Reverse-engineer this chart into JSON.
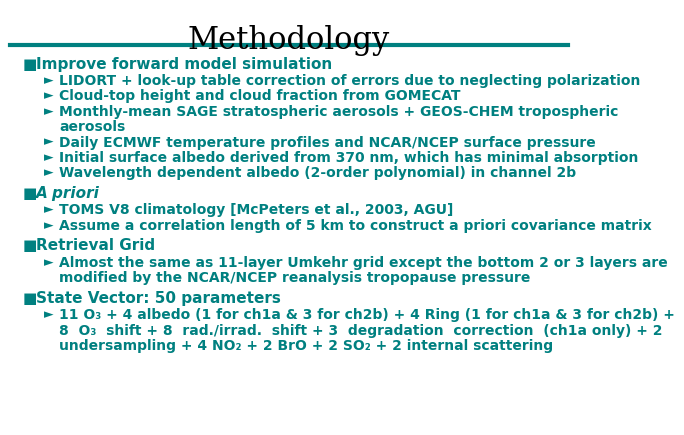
{
  "title": "Methodology",
  "title_font": "serif",
  "title_fontsize": 22,
  "teal_color": "#008080",
  "black_color": "#000000",
  "bg_color": "#ffffff",
  "bullet_size": 11,
  "sub_bullet_size": 10,
  "sections": [
    {
      "bullet": "Improve forward model simulation",
      "bullet_italic": false,
      "sub_bullets": [
        [
          "LIDORT + look-up table correction of errors due to neglecting polarization"
        ],
        [
          "Cloud-top height and cloud fraction from GOMECAT"
        ],
        [
          "Monthly-mean SAGE stratospheric aerosols + GEOS-CHEM tropospheric",
          "aerosols"
        ],
        [
          "Daily ECMWF temperature profiles and NCAR/NCEP surface pressure"
        ],
        [
          "Initial surface albedo derived from 370 nm, which has minimal absorption"
        ],
        [
          "Wavelength dependent albedo (2-order polynomial) in channel 2b"
        ]
      ]
    },
    {
      "bullet": "A priori",
      "bullet_italic": true,
      "sub_bullets": [
        [
          "TOMS V8 climatology [McPeters et al., 2003, AGU]"
        ],
        [
          "Assume a correlation length of 5 km to construct a priori covariance matrix"
        ]
      ]
    },
    {
      "bullet": "Retrieval Grid",
      "bullet_italic": false,
      "sub_bullets": [
        [
          "Almost the same as 11-layer Umkehr grid except the bottom 2 or 3 layers are",
          "modified by the NCAR/NCEP reanalysis tropopause pressure"
        ]
      ]
    },
    {
      "bullet": "State Vector: 50 parameters",
      "bullet_italic": false,
      "sub_bullets": [
        [
          "11 O₃ + 4 albedo (1 for ch1a & 3 for ch2b) + 4 Ring (1 for ch1a & 3 for ch2b) +",
          "8  O₃  shift + 8  rad./irrad.  shift + 3  degradation  correction  (ch1a only) + 2",
          "undersampling + 4 NO₂ + 2 BrO + 2 SO₂ + 2 internal scattering"
        ]
      ]
    }
  ]
}
